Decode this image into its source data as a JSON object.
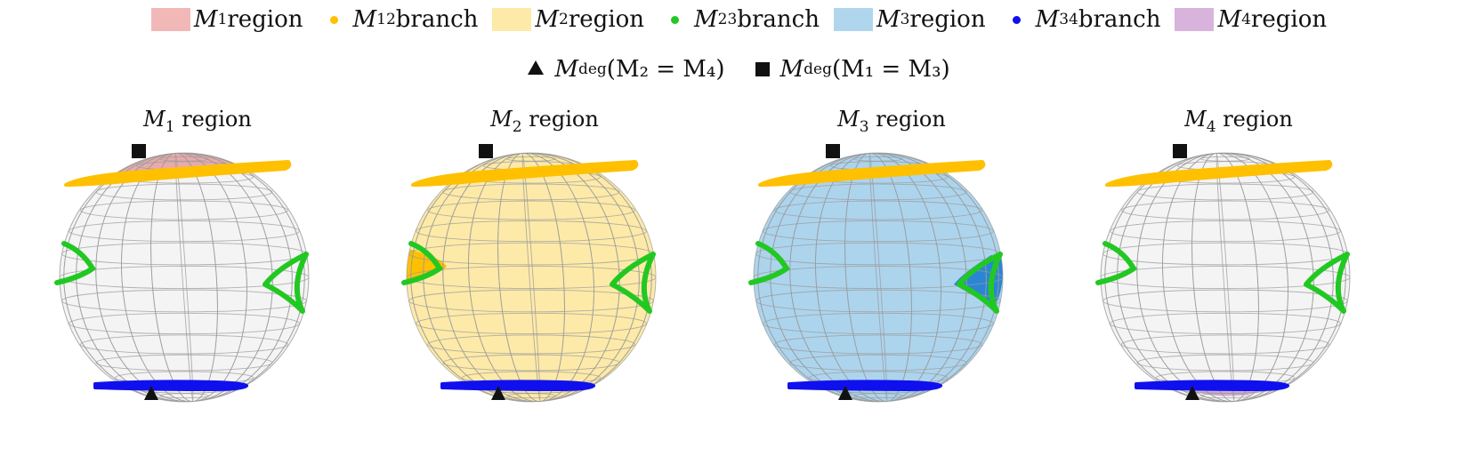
{
  "legend": {
    "items": [
      {
        "kind": "swatch",
        "var": "M",
        "sub": "1",
        "text": " region",
        "color": "#f2b8b8"
      },
      {
        "kind": "dot",
        "var": "M",
        "sub": "12",
        "text": " branch",
        "color": "#ffc000"
      },
      {
        "kind": "swatch",
        "var": "M",
        "sub": "2",
        "text": " region",
        "color": "#fdeaa8"
      },
      {
        "kind": "dot",
        "var": "M",
        "sub": "23",
        "text": " branch",
        "color": "#22c822"
      },
      {
        "kind": "swatch",
        "var": "M",
        "sub": "3",
        "text": " region",
        "color": "#b0d6ee"
      },
      {
        "kind": "dot",
        "var": "M",
        "sub": "34",
        "text": " branch",
        "color": "#1010ee"
      },
      {
        "kind": "swatch",
        "var": "M",
        "sub": "4",
        "text": " region",
        "color": "#d8b4dc"
      }
    ],
    "markers": [
      {
        "kind": "triangle",
        "var": "M",
        "sub": "deg",
        "text": " (M₂ = M₄)"
      },
      {
        "kind": "square",
        "var": "M",
        "sub": "deg",
        "text": " (M₁ = M₃)"
      }
    ]
  },
  "panels": [
    {
      "title_var": "M",
      "title_sub": "1",
      "title_text": " region",
      "highlight": "cap-top",
      "fill": "#e59999"
    },
    {
      "title_var": "M",
      "title_sub": "2",
      "title_text": " region",
      "highlight": "full",
      "fill": "#fde9a3",
      "extra": "left-lobe",
      "extra_color": "#ffc000"
    },
    {
      "title_var": "M",
      "title_sub": "3",
      "title_text": " region",
      "highlight": "full",
      "fill": "#a9d2ec",
      "extra": "right-lobe",
      "extra_color": "#2a86d4"
    },
    {
      "title_var": "M",
      "title_sub": "4",
      "title_text": " region",
      "highlight": "cap-bottom",
      "fill": "#c99ad0"
    }
  ],
  "colors": {
    "branch12": "#ffc000",
    "branch23": "#22c822",
    "branch34": "#1010ee",
    "marker": "#111111",
    "grid": "#999999",
    "sphere": "#f4f4f4"
  },
  "icons": {
    "triangle": "triangle-marker-icon",
    "square": "square-marker-icon"
  }
}
